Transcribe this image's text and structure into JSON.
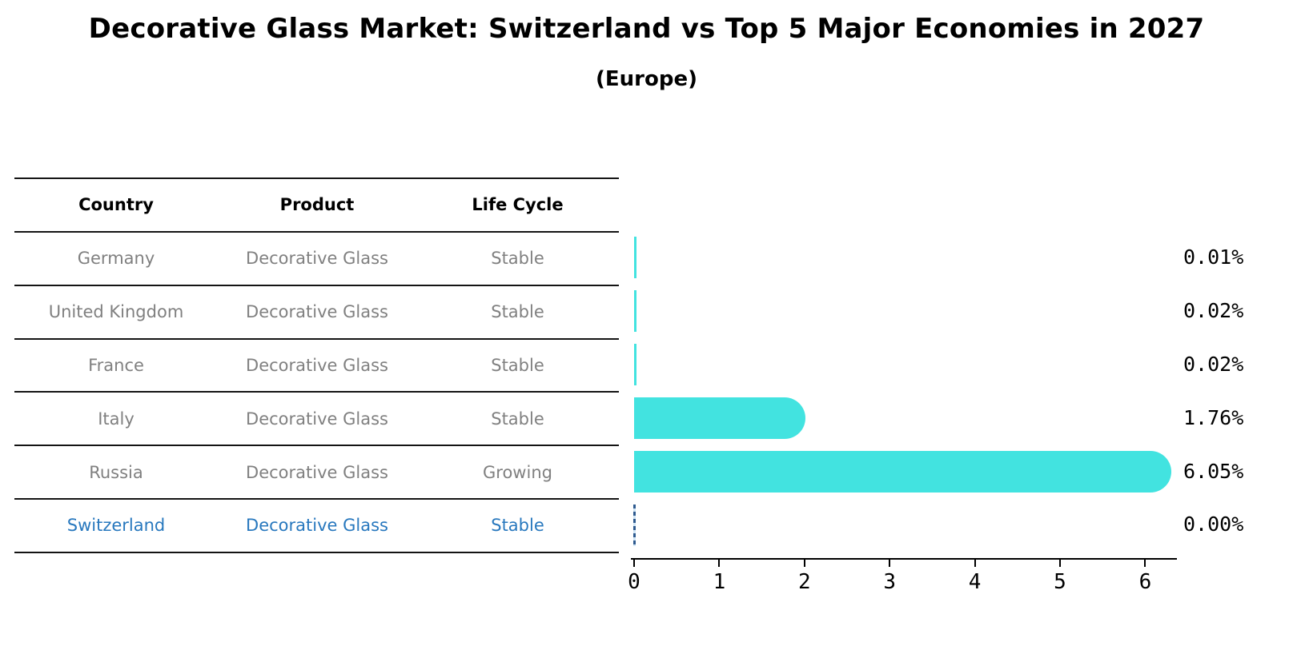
{
  "title": "Decorative Glass Market: Switzerland vs Top 5 Major Economies in 2027",
  "subtitle": "(Europe)",
  "table": {
    "headers": [
      "Country",
      "Product",
      "Life Cycle"
    ],
    "rows": [
      {
        "country": "Germany",
        "product": "Decorative Glass",
        "life_cycle": "Stable"
      },
      {
        "country": "United Kingdom",
        "product": "Decorative Glass",
        "life_cycle": "Stable"
      },
      {
        "country": "France",
        "product": "Decorative Glass",
        "life_cycle": "Stable"
      },
      {
        "country": "Italy",
        "product": "Decorative Glass",
        "life_cycle": "Stable"
      },
      {
        "country": "Russia",
        "product": "Decorative Glass",
        "life_cycle": "Growing"
      },
      {
        "country": "Switzerland",
        "product": "Decorative Glass",
        "life_cycle": "Stable",
        "highlighted": true
      }
    ]
  },
  "chart_data": {
    "type": "bar",
    "orientation": "horizontal",
    "categories": [
      "Germany",
      "United Kingdom",
      "France",
      "Italy",
      "Russia",
      "Switzerland"
    ],
    "values": [
      0.01,
      0.02,
      0.02,
      1.76,
      6.05,
      0.0
    ],
    "value_labels": [
      "0.01%",
      "0.02%",
      "0.02%",
      "1.76%",
      "6.05%",
      "0.00%"
    ],
    "xticks": [
      0,
      1,
      2,
      3,
      4,
      5,
      6
    ],
    "xlim": [
      0,
      6.4
    ],
    "grid": false,
    "legend": false,
    "highlight_index": 5,
    "highlight_style": "dashed-zero-line",
    "title": "Decorative Glass Market: Switzerland vs Top 5 Major Economies in 2027 (Europe)",
    "xlabel": "",
    "ylabel": ""
  },
  "colors": {
    "bar": "#42E3E0",
    "blue": "#2878BE",
    "marker": "#2E5A8F",
    "gray": "#808080"
  }
}
